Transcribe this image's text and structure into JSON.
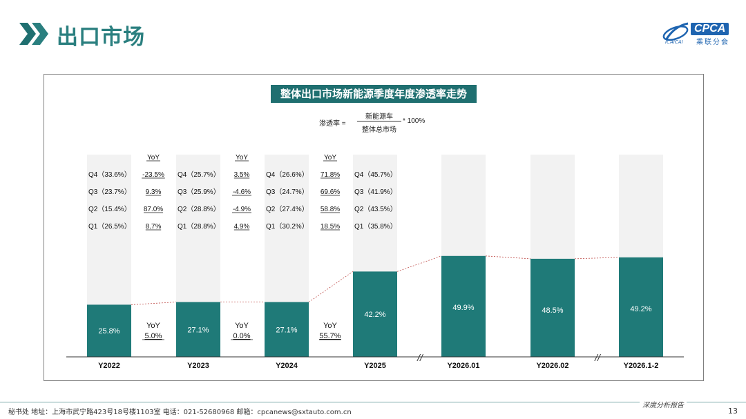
{
  "header": {
    "title": "出口市场",
    "logo_text": "CPCA",
    "logo_sub": "乘联分会",
    "logo_small": "ICAICAI"
  },
  "formula": {
    "lhs": "渗透率 =",
    "numerator": "新能源车",
    "denominator": "整体总市场",
    "rhs": "* 100%"
  },
  "footer": {
    "text": "秘书处   地址：上海市武宁路423号18号楼1103室  电话：021-52680968   邮箱：cpcanews@sxtauto.com.cn",
    "right": "深度分析报告",
    "page": "13"
  },
  "colors": {
    "accent": "#2a7f7f",
    "bar_fill": "#1f7a78",
    "bar_bg": "#f2f2f2",
    "title_bg": "#1f6f70"
  },
  "chart_data": {
    "type": "bar",
    "title": "整体出口市场新能源季度年度渗透率走势",
    "categories": [
      "Y2022",
      "Y2023",
      "Y2024",
      "Y2025",
      "Y2026.01",
      "Y2026.02",
      "Y2026.1-2"
    ],
    "values": [
      25.8,
      27.1,
      27.1,
      42.2,
      49.9,
      48.5,
      49.2
    ],
    "value_labels": [
      "25.8%",
      "27.1%",
      "27.1%",
      "42.2%",
      "49.9%",
      "48.5%",
      "49.2%"
    ],
    "ylim": [
      0,
      100
    ],
    "yoy_between": [
      {
        "label": "YoY",
        "value": "5.0%"
      },
      {
        "label": "YoY",
        "value": "0.0%"
      },
      {
        "label": "YoY",
        "value": "55.7%"
      }
    ],
    "axis_breaks": [
      "//",
      "//"
    ],
    "quarters": [
      {
        "header": "YoY",
        "rows": [
          {
            "q": "Q4（33.6%）",
            "yoy": "-23.5%"
          },
          {
            "q": "Q3（23.7%）",
            "yoy": "9.3%"
          },
          {
            "q": "Q2（15.4%）",
            "yoy": "87.0%"
          },
          {
            "q": "Q1（26.5%）",
            "yoy": "8.7%"
          }
        ]
      },
      {
        "header": "YoY",
        "rows": [
          {
            "q": "Q4（25.7%）",
            "yoy": "3.5%"
          },
          {
            "q": "Q3（25.9%）",
            "yoy": "-4.6%"
          },
          {
            "q": "Q2（28.8%）",
            "yoy": "-4.9%"
          },
          {
            "q": "Q1（28.8%）",
            "yoy": "4.9%"
          }
        ]
      },
      {
        "header": "YoY",
        "rows": [
          {
            "q": "Q4（26.6%）",
            "yoy": "71.8%"
          },
          {
            "q": "Q3（24.7%）",
            "yoy": "69.6%"
          },
          {
            "q": "Q2（27.4%）",
            "yoy": "58.8%"
          },
          {
            "q": "Q1（30.2%）",
            "yoy": "18.5%"
          }
        ]
      },
      {
        "header": "",
        "rows": [
          {
            "q": "Q4（45.7%）",
            "yoy": ""
          },
          {
            "q": "Q3（41.9%）",
            "yoy": ""
          },
          {
            "q": "Q2（43.5%）",
            "yoy": ""
          },
          {
            "q": "Q1（35.8%）",
            "yoy": ""
          }
        ]
      }
    ]
  }
}
